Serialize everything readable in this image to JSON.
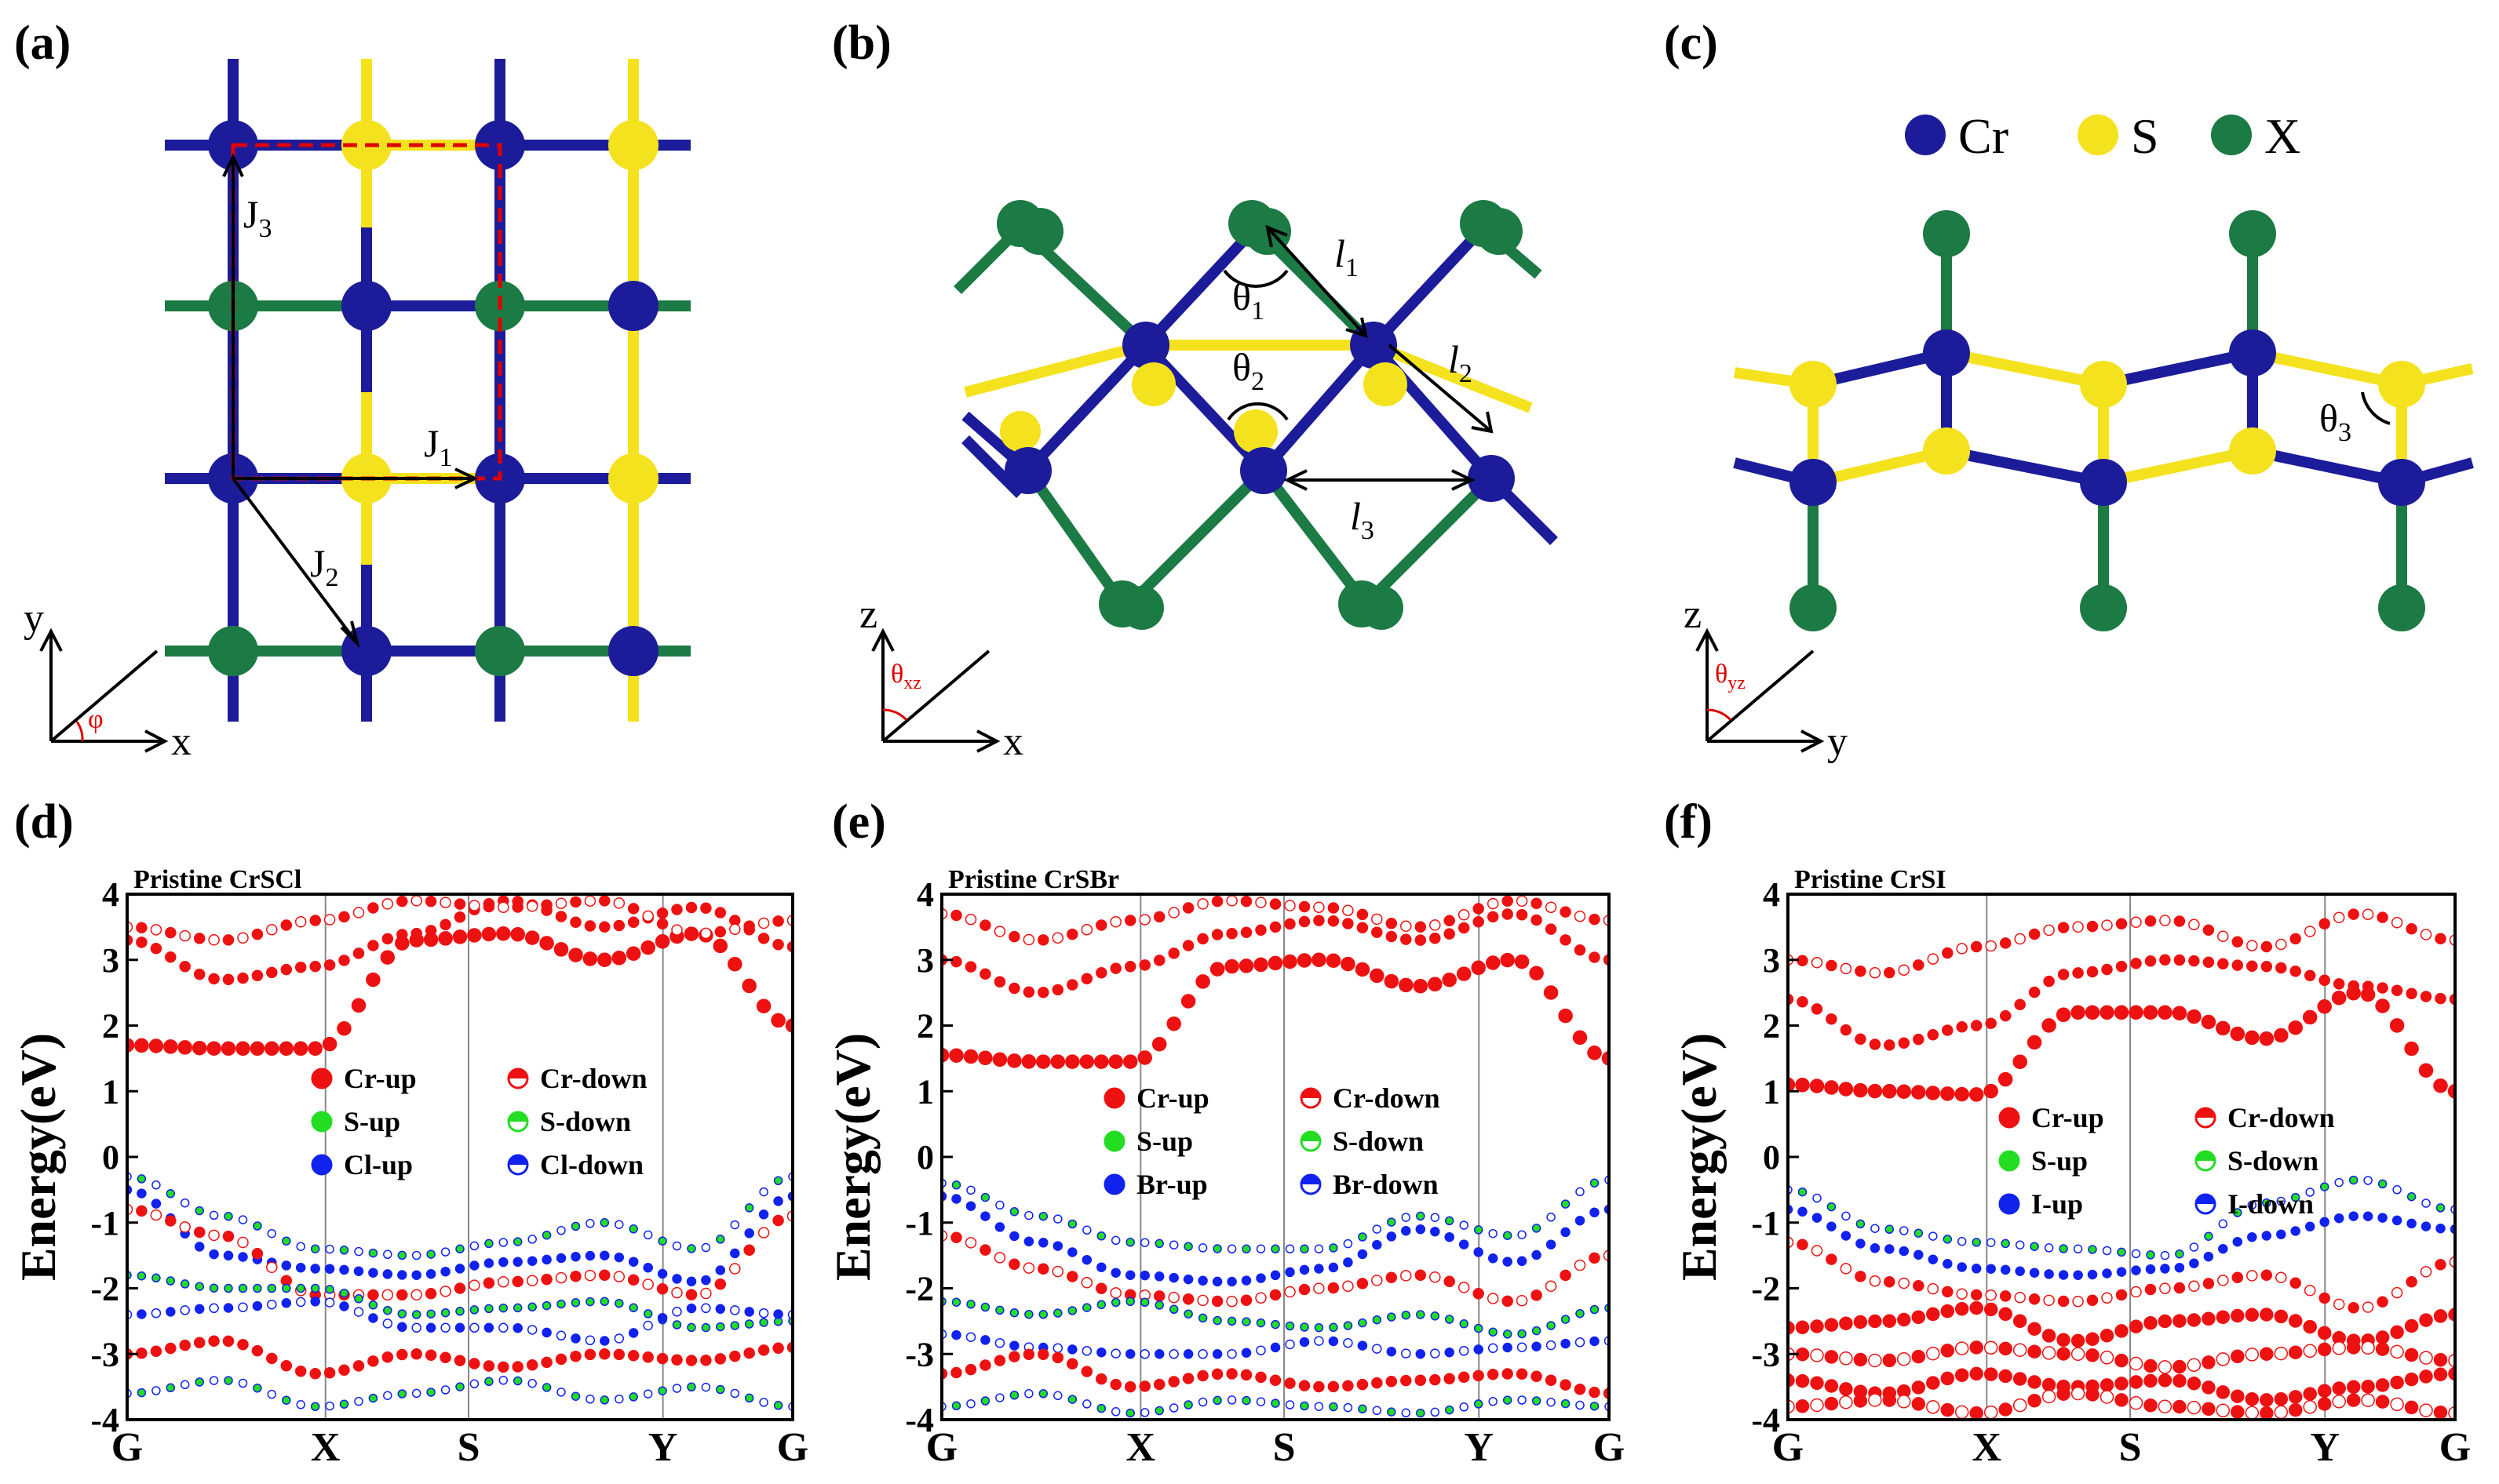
{
  "panel_labels": [
    "(a)",
    "(b)",
    "(c)",
    "(d)",
    "(e)",
    "(f)"
  ],
  "colors": {
    "cr": "#1c1c9a",
    "s": "#f5e21e",
    "x": "#1c7a44",
    "up": "#ee1111",
    "s_up": "#22dd22",
    "h_up": "#1122ee",
    "lattice": "#e00000"
  },
  "structure_a": {
    "exchange_labels": [
      "J",
      "J",
      "J"
    ],
    "exchange_subs": [
      "3",
      "1",
      "2"
    ],
    "axes": {
      "y": "y",
      "x": "x",
      "angle": "φ"
    }
  },
  "structure_b": {
    "lengths": [
      "l",
      "l",
      "l"
    ],
    "length_subs": [
      "1",
      "2",
      "3"
    ],
    "angles": [
      "θ",
      "θ"
    ],
    "angle_subs": [
      "1",
      "2"
    ],
    "axes": {
      "z": "z",
      "x": "x",
      "angle": "θ",
      "angle_sub": "xz"
    }
  },
  "structure_c": {
    "legend": [
      {
        "label": "Cr",
        "color": "cr"
      },
      {
        "label": "S",
        "color": "s"
      },
      {
        "label": "X",
        "color": "x"
      }
    ],
    "angle": "θ",
    "angle_sub": "3",
    "axes": {
      "z": "z",
      "y": "y",
      "angle": "θ",
      "angle_sub": "yz"
    }
  },
  "chart_data": [
    {
      "type": "scatter",
      "title": "Pristine CrSCl",
      "ylabel": "Energy(eV)",
      "ylim": [
        -4,
        4
      ],
      "yticks": [
        "4",
        "3",
        "2",
        "1",
        "0",
        "-1",
        "-2",
        "-3",
        "-4"
      ],
      "kpoints": [
        "G",
        "X",
        "S",
        "Y",
        "G"
      ],
      "legend": [
        "Cr-up",
        "Cr-down",
        "S-up",
        "S-down",
        "Cl-up",
        "Cl-down"
      ],
      "conduction_band_min": 1.6,
      "valence_band_max": -0.3,
      "bands": [
        [
          1.7,
          1.65,
          1.65,
          3.3,
          3.4,
          3.0,
          3.4,
          2.0
        ],
        [
          3.3,
          2.7,
          2.9,
          3.4,
          3.9,
          3.5,
          3.8,
          3.2
        ],
        [
          3.5,
          3.3,
          3.6,
          3.9,
          3.8,
          3.9,
          3.4,
          3.6
        ],
        [
          -0.3,
          -0.9,
          -1.4,
          -1.5,
          -1.3,
          -1.0,
          -1.4,
          -0.3
        ],
        [
          -0.5,
          -1.5,
          -1.7,
          -1.8,
          -1.6,
          -1.5,
          -1.9,
          -0.6
        ],
        [
          -0.8,
          -1.2,
          -2.1,
          -2.1,
          -1.9,
          -1.8,
          -2.1,
          -0.9
        ],
        [
          -1.8,
          -2.0,
          -2.0,
          -2.4,
          -2.3,
          -2.2,
          -2.6,
          -2.5
        ],
        [
          -2.4,
          -2.3,
          -2.2,
          -2.6,
          -2.6,
          -2.8,
          -2.3,
          -2.4
        ],
        [
          -3.0,
          -2.8,
          -3.3,
          -3.0,
          -3.2,
          -3.0,
          -3.1,
          -2.9
        ],
        [
          -3.6,
          -3.4,
          -3.8,
          -3.6,
          -3.4,
          -3.7,
          -3.5,
          -3.8
        ]
      ]
    },
    {
      "type": "scatter",
      "title": "Pristine CrSBr",
      "ylabel": "Energy(eV)",
      "ylim": [
        -4,
        4
      ],
      "yticks": [
        "4",
        "3",
        "2",
        "1",
        "0",
        "-1",
        "-2",
        "-3",
        "-4"
      ],
      "kpoints": [
        "G",
        "X",
        "S",
        "Y",
        "G"
      ],
      "legend": [
        "Cr-up",
        "Cr-down",
        "S-up",
        "S-down",
        "Br-up",
        "Br-down"
      ],
      "conduction_band_min": 1.4,
      "valence_band_max": -0.35,
      "bands": [
        [
          1.55,
          1.45,
          1.45,
          2.9,
          3.0,
          2.6,
          3.0,
          1.5
        ],
        [
          3.0,
          2.5,
          2.9,
          3.4,
          3.6,
          3.3,
          3.7,
          3.0
        ],
        [
          3.7,
          3.3,
          3.6,
          3.9,
          3.8,
          3.5,
          3.9,
          3.6
        ],
        [
          -0.4,
          -0.9,
          -1.3,
          -1.4,
          -1.4,
          -0.9,
          -1.2,
          -0.35
        ],
        [
          -0.6,
          -1.3,
          -1.8,
          -1.9,
          -1.7,
          -1.1,
          -1.6,
          -0.8
        ],
        [
          -1.2,
          -1.7,
          -2.1,
          -2.2,
          -2.0,
          -1.8,
          -2.2,
          -1.5
        ],
        [
          -2.2,
          -2.4,
          -2.2,
          -2.5,
          -2.6,
          -2.4,
          -2.7,
          -2.3
        ],
        [
          -2.7,
          -2.9,
          -3.0,
          -3.0,
          -2.8,
          -3.0,
          -2.9,
          -2.8
        ],
        [
          -3.3,
          -3.0,
          -3.5,
          -3.3,
          -3.5,
          -3.4,
          -3.3,
          -3.6
        ],
        [
          -3.8,
          -3.6,
          -3.9,
          -3.7,
          -3.8,
          -3.9,
          -3.7,
          -3.8
        ]
      ]
    },
    {
      "type": "scatter",
      "title": "Pristine CrSI",
      "ylabel": "Energy(eV)",
      "ylim": [
        -4,
        4
      ],
      "yticks": [
        "4",
        "3",
        "2",
        "1",
        "0",
        "-1",
        "-2",
        "-3",
        "-4"
      ],
      "kpoints": [
        "G",
        "X",
        "S",
        "Y",
        "G"
      ],
      "legend": [
        "Cr-up",
        "Cr-down",
        "S-up",
        "S-down",
        "I-up",
        "I-down"
      ],
      "conduction_band_min": 0.95,
      "valence_band_max": -0.35,
      "bands": [
        [
          1.1,
          1.0,
          0.95,
          2.2,
          2.2,
          1.8,
          2.5,
          1.0
        ],
        [
          2.4,
          1.7,
          2.0,
          2.8,
          3.0,
          2.9,
          2.6,
          2.4
        ],
        [
          3.0,
          2.8,
          3.2,
          3.5,
          3.6,
          3.2,
          3.7,
          3.3
        ],
        [
          -0.5,
          -1.1,
          -1.3,
          -1.4,
          -1.5,
          -0.7,
          -0.35,
          -0.8
        ],
        [
          -0.8,
          -1.4,
          -1.7,
          -1.8,
          -1.7,
          -1.2,
          -0.9,
          -1.1
        ],
        [
          -1.3,
          -1.9,
          -2.1,
          -2.2,
          -2.0,
          -1.8,
          -2.3,
          -1.6
        ],
        [
          -2.6,
          -2.5,
          -2.3,
          -2.8,
          -2.5,
          -2.4,
          -2.8,
          -2.4
        ],
        [
          -3.0,
          -3.1,
          -2.9,
          -3.0,
          -3.2,
          -3.0,
          -2.9,
          -3.1
        ],
        [
          -3.4,
          -3.6,
          -3.3,
          -3.5,
          -3.4,
          -3.7,
          -3.5,
          -3.3
        ],
        [
          -3.8,
          -3.7,
          -3.9,
          -3.6,
          -3.8,
          -3.9,
          -3.7,
          -3.9
        ]
      ]
    }
  ]
}
